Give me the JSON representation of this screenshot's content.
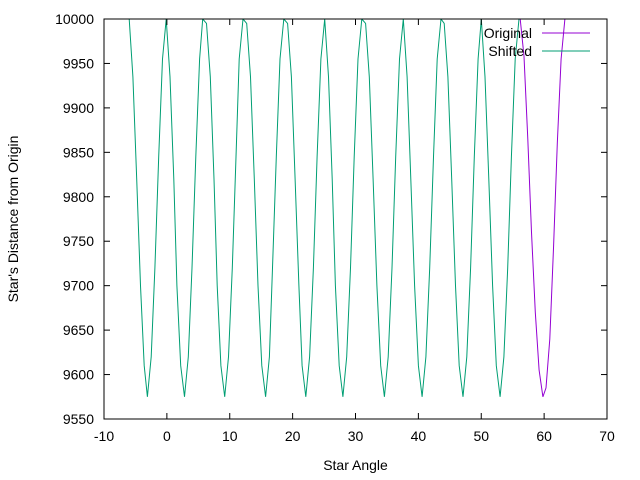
{
  "chart_data": {
    "type": "line",
    "title": "",
    "xlabel": "Star Angle",
    "ylabel": "Star's Distance from Origin",
    "xlim": [
      -10,
      70
    ],
    "ylim": [
      9550,
      10000
    ],
    "xticks": [
      "-10",
      "0",
      "10",
      "20",
      "30",
      "40",
      "50",
      "60",
      "70"
    ],
    "yticks": [
      "9550",
      "9600",
      "9650",
      "9700",
      "9750",
      "9800",
      "9850",
      "9900",
      "9950",
      "10000"
    ],
    "grid": false,
    "legend_position": "top-right",
    "series": [
      {
        "name": "Original",
        "color": "#9400d3",
        "x": [
          56.2,
          56.8,
          57.4,
          58.0,
          58.6,
          59.2,
          59.8,
          60.3,
          60.9,
          61.5,
          62.1,
          62.7,
          63.3
        ],
        "y": [
          10000,
          9958,
          9865,
          9760,
          9670,
          9605,
          9575,
          9585,
          9640,
          9745,
          9860,
          9955,
          10000
        ]
      },
      {
        "name": "Shifted",
        "color": "#009e73",
        "x": [
          -6.0,
          -5.4,
          -4.8,
          -4.2,
          -3.6,
          -3.1,
          -2.5,
          -1.9,
          -1.3,
          -0.7,
          -0.1,
          0.5,
          1.1,
          1.6,
          2.2,
          2.8,
          3.4,
          4.0,
          4.6,
          5.2,
          5.7,
          6.3,
          6.9,
          7.5,
          8.0,
          8.6,
          9.2,
          9.8,
          10.4,
          11.0,
          11.5,
          12.1,
          12.7,
          13.3,
          13.9,
          14.5,
          15.1,
          15.7,
          16.3,
          16.8,
          17.4,
          18.0,
          18.6,
          19.2,
          19.8,
          20.4,
          21.0,
          21.5,
          22.1,
          22.7,
          23.3,
          23.9,
          24.5,
          25.1,
          25.7,
          26.3,
          26.8,
          27.4,
          28.0,
          28.6,
          29.2,
          29.8,
          30.4,
          31.0,
          31.6,
          32.2,
          32.8,
          33.4,
          34.0,
          34.6,
          35.2,
          35.8,
          36.4,
          37.0,
          37.6,
          38.2,
          38.8,
          39.4,
          40.0,
          40.6,
          41.2,
          41.8,
          42.4,
          43.0,
          43.6,
          44.1,
          44.7,
          45.3,
          45.9,
          46.5,
          47.1,
          47.7,
          48.3,
          48.9,
          49.5,
          50.0,
          50.6,
          51.2,
          51.8,
          52.4,
          53.0,
          53.6,
          54.2,
          54.8,
          55.4,
          56.0,
          56.6
        ],
        "y": [
          10000,
          9935,
          9820,
          9700,
          9610,
          9575,
          9620,
          9720,
          9845,
          9955,
          10000,
          9935,
          9820,
          9700,
          9610,
          9575,
          9620,
          9720,
          9845,
          9955,
          10000,
          9995,
          9935,
          9820,
          9700,
          9610,
          9575,
          9620,
          9720,
          9845,
          9955,
          10000,
          9995,
          9935,
          9820,
          9700,
          9610,
          9575,
          9620,
          9720,
          9845,
          9955,
          10000,
          9995,
          9935,
          9820,
          9700,
          9610,
          9575,
          9620,
          9720,
          9845,
          9955,
          10000,
          9935,
          9820,
          9700,
          9610,
          9575,
          9620,
          9720,
          9845,
          9955,
          10000,
          9995,
          9935,
          9820,
          9700,
          9610,
          9575,
          9620,
          9720,
          9845,
          9955,
          10000,
          9935,
          9820,
          9700,
          9610,
          9575,
          9620,
          9720,
          9845,
          9955,
          10000,
          9995,
          9935,
          9820,
          9700,
          9610,
          9575,
          9620,
          9720,
          9845,
          9955,
          10000,
          9935,
          9820,
          9700,
          9610,
          9575,
          9620,
          9720,
          9845,
          9955,
          10000,
          10000
        ]
      }
    ]
  }
}
